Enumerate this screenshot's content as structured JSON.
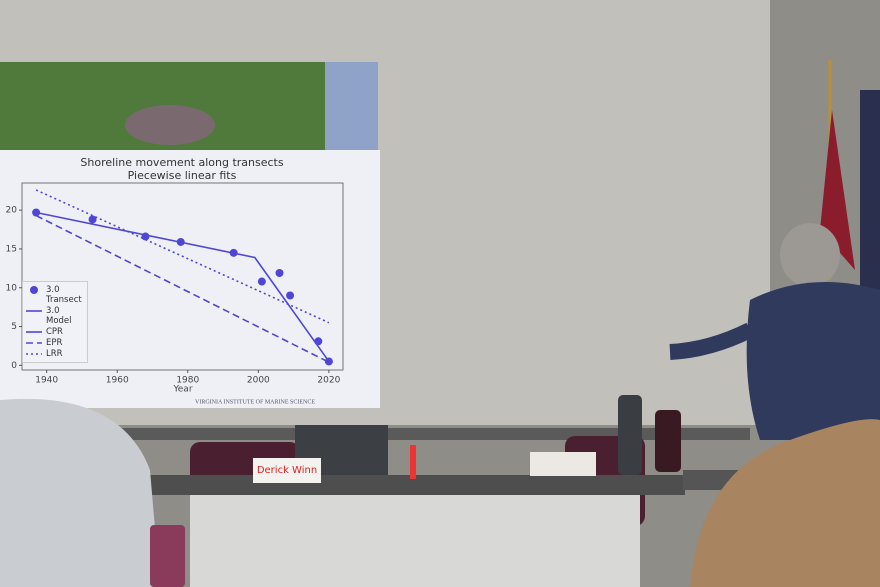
{
  "chart_data": {
    "type": "line",
    "title": "Shoreline movement along transects",
    "subtitle": "Piecewise linear fits",
    "x_label": "Year",
    "xlim": [
      1933,
      2024
    ],
    "xticks": [
      1940,
      1960,
      1980,
      2000,
      2020
    ],
    "ylim": [
      -0.6,
      23.5
    ],
    "yticks": [
      0,
      5,
      10,
      15,
      20
    ],
    "legend": "lower left",
    "series": [
      {
        "name": "3.0 Transect",
        "color": "#5046d6",
        "style": "markers",
        "x": [
          1937,
          1953,
          1968,
          1978,
          1993,
          2001,
          2006,
          2009,
          2017,
          2020
        ],
        "values": [
          19.7,
          18.8,
          16.6,
          15.9,
          14.5,
          10.8,
          11.9,
          9.0,
          3.1,
          0.5
        ]
      },
      {
        "name": "3.0 Model",
        "color": "#5046d6",
        "style": "solid",
        "x": [
          1937,
          1999,
          2020
        ],
        "values": [
          19.7,
          13.9,
          0.5
        ]
      },
      {
        "name": "CPR",
        "color": "#5046d6",
        "style": "solid",
        "x": [],
        "values": []
      },
      {
        "name": "EPR",
        "color": "#5046d6",
        "style": "dashed",
        "x": [
          1937,
          2020
        ],
        "values": [
          19.3,
          0.4
        ]
      },
      {
        "name": "LRR",
        "color": "#5046d6",
        "style": "dotted",
        "x": [
          1937,
          2020
        ],
        "values": [
          22.6,
          5.5
        ]
      }
    ]
  },
  "slide_footer": "VIRGINIA INSTITUTE OF MARINE SCIENCE",
  "placard": "Derick Winn"
}
